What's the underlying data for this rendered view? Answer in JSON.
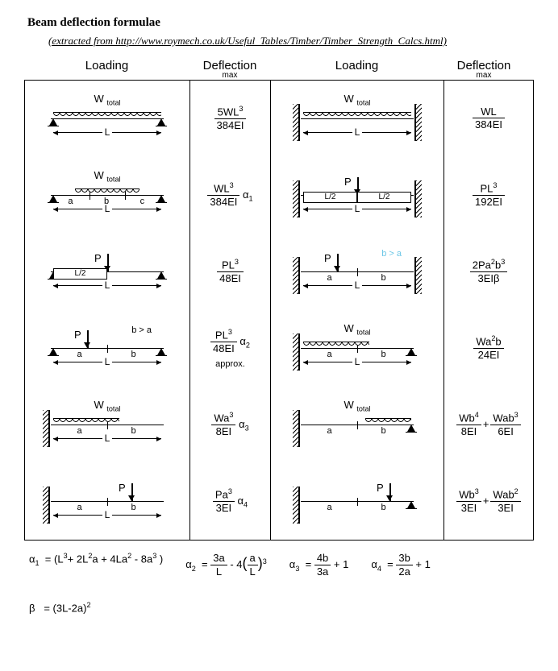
{
  "title": "Beam deflection formulae",
  "subtitle": "(extracted from http://www.roymech.co.uk/Useful_Tables/Timber/Timber_Strength_Calcs.html)",
  "headers": {
    "loading": "Loading",
    "deflection": "Deflection",
    "max": "max"
  },
  "left": [
    {
      "support": "simple",
      "load": "udl_full",
      "toplabel": "W",
      "topsub": "total",
      "dimL": "L",
      "formula": {
        "num": "5WL<sup>3</sup>",
        "den": "384EI"
      }
    },
    {
      "support": "simple",
      "load": "udl_partial_mid",
      "toplabel": "W",
      "topsub": "total",
      "dimL": "L",
      "segs": [
        "a",
        "b",
        "c"
      ],
      "formula": {
        "num": "WL<sup>3</sup>",
        "den": "384EI",
        "factor": "α<sub>1</sub>"
      }
    },
    {
      "support": "simple",
      "load": "point_mid",
      "plabel": "P",
      "dimL": "L",
      "half": "L/2",
      "formula": {
        "num": "PL<sup>3</sup>",
        "den": "48EI"
      }
    },
    {
      "support": "simple",
      "load": "point_off",
      "plabel": "P",
      "dimL": "L",
      "segs": [
        "a",
        "b"
      ],
      "note": "b > a",
      "formula": {
        "num": "PL<sup>3</sup>",
        "den": "48EI",
        "factor": "α<sub>2</sub>",
        "approx": "approx."
      }
    },
    {
      "support": "cantilever",
      "load": "udl_partial_left",
      "toplabel": "W",
      "topsub": "total",
      "dimL": "L",
      "segs": [
        "a",
        "b"
      ],
      "formula": {
        "num": "Wa<sup>3</sup>",
        "den": "8EI",
        "factor": "α<sub>3</sub>"
      }
    },
    {
      "support": "cantilever",
      "load": "point",
      "plabel": "P",
      "dimL": "L",
      "segs": [
        "a",
        "b"
      ],
      "formula": {
        "num": "Pa<sup>3</sup>",
        "den": "3EI",
        "factor": "α<sub>4</sub>"
      }
    }
  ],
  "right": [
    {
      "support": "fixed",
      "load": "udl_full",
      "toplabel": "W",
      "topsub": "total",
      "dimL": "L",
      "formula": {
        "num": "WL",
        "den": "384EI"
      }
    },
    {
      "support": "fixed",
      "load": "point_mid",
      "plabel": "P",
      "dimL": "L",
      "halves": [
        "L/2",
        "L/2"
      ],
      "formula": {
        "num": "PL<sup>3</sup>",
        "den": "192EI"
      }
    },
    {
      "support": "fixed",
      "load": "point_off",
      "plabel": "P",
      "dimL": "L",
      "segs": [
        "a",
        "b"
      ],
      "note": "b > a",
      "noteColor": "#6cc6e6",
      "formula": {
        "num": "2Pa<sup>2</sup>b<sup>3</sup>",
        "den": "3EIβ"
      }
    },
    {
      "support": "propped",
      "load": "udl_partial_left",
      "toplabel": "W",
      "topsub": "total",
      "dimL": "L",
      "segs": [
        "a",
        "b"
      ],
      "formula": {
        "num": "Wa<sup>2</sup>b",
        "den": "24EI"
      }
    },
    {
      "support": "propped",
      "load": "udl_partial_right",
      "toplabel": "W",
      "topsub": "total",
      "segs": [
        "a",
        "b"
      ],
      "formula2": [
        {
          "num": "Wb<sup>4</sup>",
          "den": "8EI"
        },
        {
          "num": "Wab<sup>3</sup>",
          "den": "6EI"
        }
      ]
    },
    {
      "support": "propped",
      "load": "point_right",
      "plabel": "P",
      "segs": [
        "a",
        "b"
      ],
      "formula2": [
        {
          "num": "Wb<sup>3</sup>",
          "den": "3EI"
        },
        {
          "num": "Wab<sup>2</sup>",
          "den": "3EI"
        }
      ]
    }
  ],
  "footer": {
    "a1": "α<sub>1</sub>&nbsp; = (L<sup>3</sup>+ 2L<sup>2</sup>a + 4La<sup>2</sup> - 8a<sup>3</sup> )",
    "a2": {
      "lhs": "α<sub>2</sub>&nbsp; =",
      "t1n": "3a",
      "t1d": "L",
      "mid": "- 4",
      "t2n": "a",
      "t2d": "L",
      "pow": "3"
    },
    "a3": {
      "lhs": "α<sub>3</sub>&nbsp; =",
      "n": "4b",
      "d": "3a",
      "tail": "+ 1"
    },
    "a4": {
      "lhs": "α<sub>4</sub>&nbsp; =",
      "n": "3b",
      "d": "2a",
      "tail": "+ 1"
    },
    "beta": "β&nbsp;&nbsp;&nbsp;= (3L-2a)<sup>2</sup>"
  }
}
